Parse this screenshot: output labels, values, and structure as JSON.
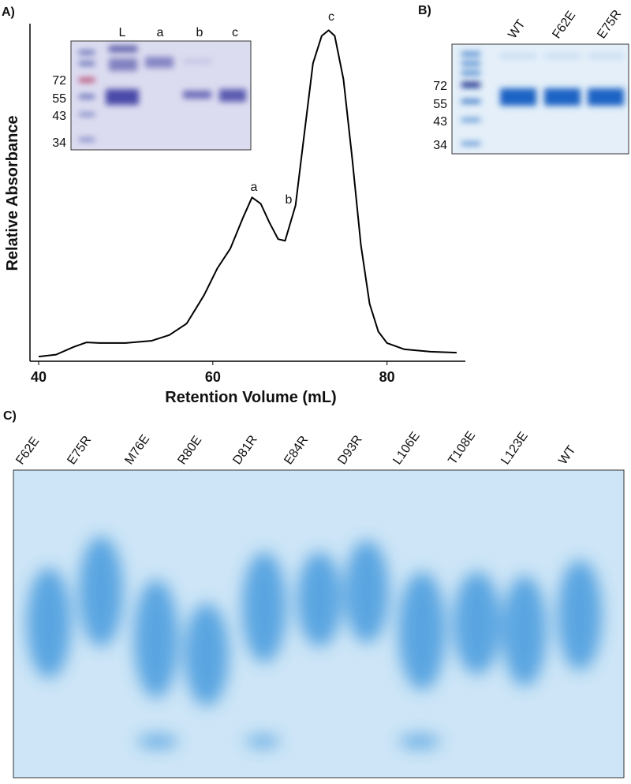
{
  "chart_data": {
    "type": "line",
    "panel": "A)",
    "xlabel": "Retention Volume (mL)",
    "ylabel": "Relative Absorbance",
    "x": [
      40,
      42,
      44,
      45.5,
      47,
      50,
      53,
      55,
      57,
      59,
      60.5,
      62,
      63.5,
      64.5,
      65.5,
      66.5,
      67.5,
      68.3,
      69.5,
      70.5,
      71.5,
      72.5,
      73.3,
      74,
      75,
      76,
      77,
      78,
      79,
      80,
      82,
      85,
      88
    ],
    "series": [
      {
        "color": "#000000",
        "values": [
          0.014,
          0.02,
          0.043,
          0.057,
          0.055,
          0.055,
          0.062,
          0.079,
          0.114,
          0.2,
          0.28,
          0.34,
          0.436,
          0.495,
          0.476,
          0.419,
          0.369,
          0.364,
          0.471,
          0.686,
          0.9,
          0.983,
          1.0,
          0.983,
          0.852,
          0.614,
          0.352,
          0.174,
          0.09,
          0.055,
          0.036,
          0.029,
          0.026
        ]
      }
    ],
    "xlim": [
      39,
      89
    ],
    "ylim": [
      0,
      1.02
    ],
    "xticks": [
      40,
      60,
      80
    ],
    "annotations": [
      "a",
      "b",
      "c"
    ]
  },
  "inset_gel": {
    "lanes": [
      "L",
      "a",
      "b",
      "c"
    ],
    "markers": [
      72,
      55,
      43,
      34
    ]
  },
  "panel_b": {
    "label": "B)",
    "lanes": [
      "WT",
      "F62E",
      "E75R"
    ],
    "markers": [
      72,
      55,
      43,
      34
    ]
  },
  "panel_c": {
    "label": "C)",
    "lanes": [
      "F62E",
      "E75R",
      "M76E",
      "R80E",
      "D81R",
      "E84R",
      "D93R",
      "L106E",
      "T108E",
      "L123E",
      "WT"
    ]
  }
}
